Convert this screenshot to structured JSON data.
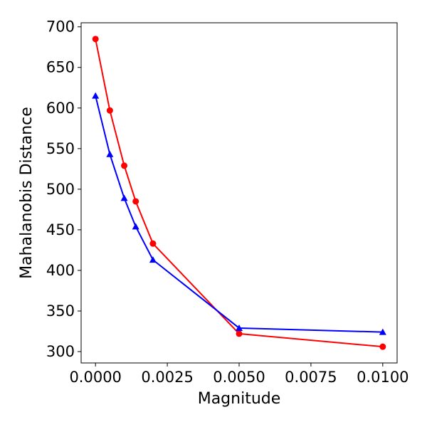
{
  "chart_data": {
    "type": "line",
    "title": "",
    "xlabel": "Magnitude",
    "ylabel": "Mahalanobis Distance",
    "xlim": [
      -0.0005,
      0.0105
    ],
    "ylim": [
      286,
      705
    ],
    "x_ticks": [
      0.0,
      0.0025,
      0.005,
      0.0075,
      0.01
    ],
    "x_tick_labels": [
      "0.0000",
      "0.0025",
      "0.0050",
      "0.0075",
      "0.0100"
    ],
    "y_ticks": [
      300,
      350,
      400,
      450,
      500,
      550,
      600,
      650,
      700
    ],
    "y_tick_labels": [
      "300",
      "350",
      "400",
      "450",
      "500",
      "550",
      "600",
      "650",
      "700"
    ],
    "grid": false,
    "series": [
      {
        "name": "red-circle-series",
        "color": "#ff0000",
        "marker": "circle",
        "x": [
          0.0,
          0.0005,
          0.001,
          0.0014,
          0.002,
          0.005,
          0.01
        ],
        "y": [
          685,
          597,
          529,
          485,
          433,
          322,
          306
        ]
      },
      {
        "name": "blue-triangle-series",
        "color": "#0000ff",
        "marker": "triangle",
        "x": [
          0.0,
          0.0005,
          0.001,
          0.0014,
          0.002,
          0.005,
          0.01
        ],
        "y": [
          615,
          543,
          489,
          454,
          413,
          329,
          324
        ]
      }
    ]
  }
}
